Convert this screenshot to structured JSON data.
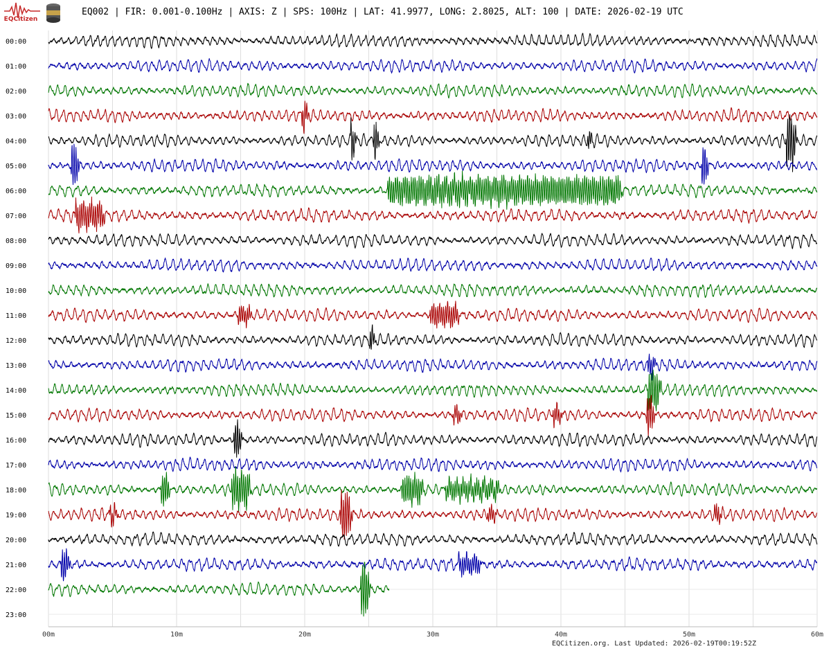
{
  "logo_text": "EQCitizen",
  "title": "EQ002 | FIR: 0.001-0.100Hz | AXIS: Z | SPS: 100Hz | LAT: 41.9977, LONG: 2.8025, ALT: 100 | DATE: 2026-02-19 UTC",
  "footer": "EQCitizen.org. Last Updated: 2026-02-19T00:19:52Z",
  "colors": [
    "#000000",
    "#0000aa",
    "#007700",
    "#aa0000"
  ],
  "chart_data": {
    "type": "line",
    "title": "EQ002 | FIR: 0.001-0.100Hz | AXIS: Z | SPS: 100Hz | LAT: 41.9977, LONG: 2.8025, ALT: 100 | DATE: 2026-02-19 UTC",
    "xlabel": "",
    "ylabel": "",
    "x_ticks": [
      "00m",
      "10m",
      "20m",
      "30m",
      "40m",
      "50m",
      "60m"
    ],
    "xlim": [
      0,
      60
    ],
    "grid": true,
    "rows": [
      {
        "label": "00:00",
        "end": 60,
        "events": []
      },
      {
        "label": "01:00",
        "end": 60,
        "events": []
      },
      {
        "label": "02:00",
        "end": 60,
        "events": []
      },
      {
        "label": "03:00",
        "end": 60,
        "events": [
          {
            "t": 19.8,
            "dur": 0.2,
            "amp": 22
          }
        ]
      },
      {
        "label": "04:00",
        "end": 60,
        "events": [
          {
            "t": 23.6,
            "dur": 0.1,
            "amp": 30
          },
          {
            "t": 25.4,
            "dur": 0.1,
            "amp": 30
          },
          {
            "t": 42.1,
            "dur": 0.1,
            "amp": 14
          },
          {
            "t": 57.6,
            "dur": 0.5,
            "amp": 40
          }
        ]
      },
      {
        "label": "05:00",
        "end": 60,
        "events": [
          {
            "t": 1.8,
            "dur": 0.3,
            "amp": 32
          },
          {
            "t": 51.0,
            "dur": 0.2,
            "amp": 34
          }
        ]
      },
      {
        "label": "06:00",
        "end": 60,
        "events": [
          {
            "t": 26.5,
            "dur": 18.0,
            "amp": 20
          },
          {
            "t": 43.2,
            "dur": 0.5,
            "amp": 26
          }
        ]
      },
      {
        "label": "07:00",
        "end": 60,
        "events": [
          {
            "t": 2.1,
            "dur": 2.0,
            "amp": 20
          }
        ]
      },
      {
        "label": "08:00",
        "end": 60,
        "events": []
      },
      {
        "label": "09:00",
        "end": 60,
        "events": []
      },
      {
        "label": "10:00",
        "end": 60,
        "events": []
      },
      {
        "label": "11:00",
        "end": 60,
        "events": [
          {
            "t": 14.8,
            "dur": 0.8,
            "amp": 14
          },
          {
            "t": 29.8,
            "dur": 2.0,
            "amp": 16
          }
        ]
      },
      {
        "label": "12:00",
        "end": 60,
        "events": [
          {
            "t": 25.1,
            "dur": 0.1,
            "amp": 20
          }
        ]
      },
      {
        "label": "13:00",
        "end": 60,
        "events": [
          {
            "t": 46.8,
            "dur": 0.3,
            "amp": 16
          }
        ]
      },
      {
        "label": "14:00",
        "end": 60,
        "events": [
          {
            "t": 46.8,
            "dur": 0.7,
            "amp": 30
          }
        ]
      },
      {
        "label": "15:00",
        "end": 60,
        "events": [
          {
            "t": 31.6,
            "dur": 0.4,
            "amp": 12
          },
          {
            "t": 39.4,
            "dur": 0.4,
            "amp": 14
          },
          {
            "t": 46.7,
            "dur": 0.3,
            "amp": 30
          }
        ]
      },
      {
        "label": "16:00",
        "end": 60,
        "events": [
          {
            "t": 14.5,
            "dur": 0.3,
            "amp": 28
          }
        ]
      },
      {
        "label": "17:00",
        "end": 60,
        "events": []
      },
      {
        "label": "18:00",
        "end": 60,
        "events": [
          {
            "t": 8.8,
            "dur": 0.4,
            "amp": 24
          },
          {
            "t": 14.3,
            "dur": 1.2,
            "amp": 26
          },
          {
            "t": 27.6,
            "dur": 1.4,
            "amp": 20
          },
          {
            "t": 31.0,
            "dur": 4.0,
            "amp": 14
          }
        ]
      },
      {
        "label": "19:00",
        "end": 60,
        "events": [
          {
            "t": 4.8,
            "dur": 0.3,
            "amp": 14
          },
          {
            "t": 22.8,
            "dur": 0.6,
            "amp": 34
          },
          {
            "t": 34.3,
            "dur": 0.4,
            "amp": 12
          },
          {
            "t": 52.0,
            "dur": 0.3,
            "amp": 14
          }
        ]
      },
      {
        "label": "20:00",
        "end": 60,
        "events": []
      },
      {
        "label": "21:00",
        "end": 60,
        "events": [
          {
            "t": 1.0,
            "dur": 0.4,
            "amp": 22
          },
          {
            "t": 32.0,
            "dur": 1.5,
            "amp": 14
          }
        ]
      },
      {
        "label": "22:00",
        "end": 26.6,
        "events": [
          {
            "t": 24.4,
            "dur": 0.4,
            "amp": 44
          }
        ]
      },
      {
        "label": "23:00",
        "end": 0,
        "events": []
      }
    ]
  }
}
